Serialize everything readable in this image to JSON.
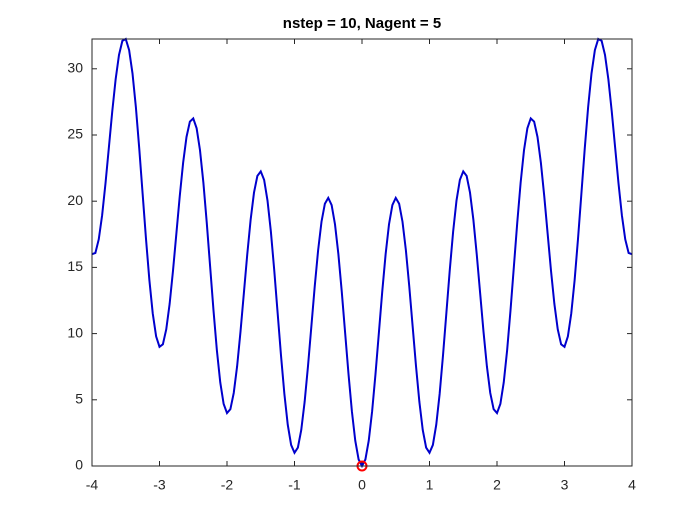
{
  "chart_data": {
    "type": "line",
    "title": "nstep = 10, Nagent = 5",
    "xlim": [
      -4,
      4
    ],
    "xticks": [
      -4,
      -3,
      -2,
      -1,
      0,
      1,
      2,
      3,
      4
    ],
    "ylim": [
      0,
      32.25
    ],
    "yticks": [
      0,
      5,
      10,
      15,
      20,
      25,
      30
    ],
    "series": [
      {
        "type": "line",
        "color": "#0000cd",
        "x": [
          -4,
          -3.95,
          -3.9,
          -3.85,
          -3.8,
          -3.75,
          -3.7,
          -3.65,
          -3.6,
          -3.55,
          -3.5,
          -3.45,
          -3.4,
          -3.35,
          -3.3,
          -3.25,
          -3.2,
          -3.15,
          -3.1,
          -3.05,
          -3,
          -2.95,
          -2.9,
          -2.85,
          -2.8,
          -2.75,
          -2.7,
          -2.65,
          -2.6,
          -2.55,
          -2.5,
          -2.45,
          -2.4,
          -2.35,
          -2.3,
          -2.25,
          -2.2,
          -2.15,
          -2.1,
          -2.05,
          -2,
          -1.95,
          -1.9,
          -1.85,
          -1.8,
          -1.75,
          -1.7,
          -1.65,
          -1.6,
          -1.55,
          -1.5,
          -1.45,
          -1.4,
          -1.35,
          -1.3,
          -1.25,
          -1.2,
          -1.15,
          -1.1,
          -1.05,
          -1,
          -0.95,
          -0.9,
          -0.85,
          -0.8,
          -0.75,
          -0.7,
          -0.65,
          -0.6,
          -0.55,
          -0.5,
          -0.45,
          -0.4,
          -0.35,
          -0.3,
          -0.25,
          -0.2,
          -0.15,
          -0.1,
          -0.05,
          0,
          0.05,
          0.1,
          0.15,
          0.2,
          0.25,
          0.3,
          0.35,
          0.4,
          0.45,
          0.5,
          0.55,
          0.6,
          0.65,
          0.7,
          0.75,
          0.8,
          0.85,
          0.9,
          0.95,
          1,
          1.05,
          1.1,
          1.15,
          1.2,
          1.25,
          1.3,
          1.35,
          1.4,
          1.45,
          1.5,
          1.55,
          1.6,
          1.65,
          1.7,
          1.75,
          1.8,
          1.85,
          1.9,
          1.95,
          2,
          2.05,
          2.1,
          2.15,
          2.2,
          2.25,
          2.3,
          2.35,
          2.4,
          2.45,
          2.5,
          2.55,
          2.6,
          2.65,
          2.7,
          2.75,
          2.8,
          2.85,
          2.9,
          2.95,
          3,
          3.05,
          3.1,
          3.15,
          3.2,
          3.25,
          3.3,
          3.35,
          3.4,
          3.45,
          3.5,
          3.55,
          3.6,
          3.65,
          3.7,
          3.75,
          3.8,
          3.85,
          3.9,
          3.95,
          4
        ],
        "values": [
          16,
          16.09,
          17.12,
          18.94,
          21.35,
          24.06,
          26.78,
          29.2,
          31.05,
          32.11,
          32.25,
          31.41,
          29.65,
          27.1,
          23.98,
          20.56,
          17.15,
          14.04,
          11.52,
          9.79,
          9,
          9.19,
          10.32,
          12.24,
          14.75,
          17.56,
          20.38,
          22.9,
          24.85,
          26.01,
          26.25,
          25.51,
          23.85,
          21.4,
          18.38,
          15.06,
          11.75,
          8.74,
          6.32,
          4.69,
          4,
          4.29,
          5.52,
          7.54,
          10.15,
          13.06,
          15.98,
          18.6,
          20.65,
          21.91,
          22.25,
          21.61,
          20.05,
          17.7,
          14.78,
          11.56,
          8.35,
          5.44,
          3.12,
          1.59,
          1,
          1.39,
          2.72,
          4.84,
          7.55,
          10.56,
          13.58,
          16.3,
          18.45,
          19.81,
          20.25,
          19.71,
          18.25,
          16,
          13.18,
          10.06,
          6.95,
          4.14,
          1.92,
          0.49,
          0,
          0.49,
          1.92,
          4.14,
          6.95,
          10.06,
          13.18,
          16,
          18.25,
          19.71,
          20.25,
          19.81,
          18.45,
          16.3,
          13.58,
          10.56,
          7.55,
          4.84,
          2.72,
          1.39,
          1,
          1.59,
          3.12,
          5.44,
          8.35,
          11.56,
          14.78,
          17.7,
          20.05,
          21.61,
          22.25,
          21.91,
          20.65,
          18.6,
          15.98,
          13.06,
          10.15,
          7.54,
          5.52,
          4.29,
          4,
          4.69,
          6.32,
          8.74,
          11.75,
          15.06,
          18.38,
          21.4,
          23.85,
          25.51,
          26.25,
          26.01,
          24.85,
          22.9,
          20.38,
          17.56,
          14.75,
          12.24,
          10.32,
          9.19,
          9,
          9.79,
          11.52,
          14.04,
          17.15,
          20.56,
          23.98,
          27.1,
          29.65,
          31.41,
          32.25,
          32.11,
          31.05,
          29.2,
          26.78,
          24.06,
          21.35,
          18.94,
          17.12,
          16.09,
          16
        ]
      },
      {
        "type": "scatter",
        "color": "#ff0000",
        "x": [
          0
        ],
        "values": [
          0
        ]
      }
    ]
  }
}
